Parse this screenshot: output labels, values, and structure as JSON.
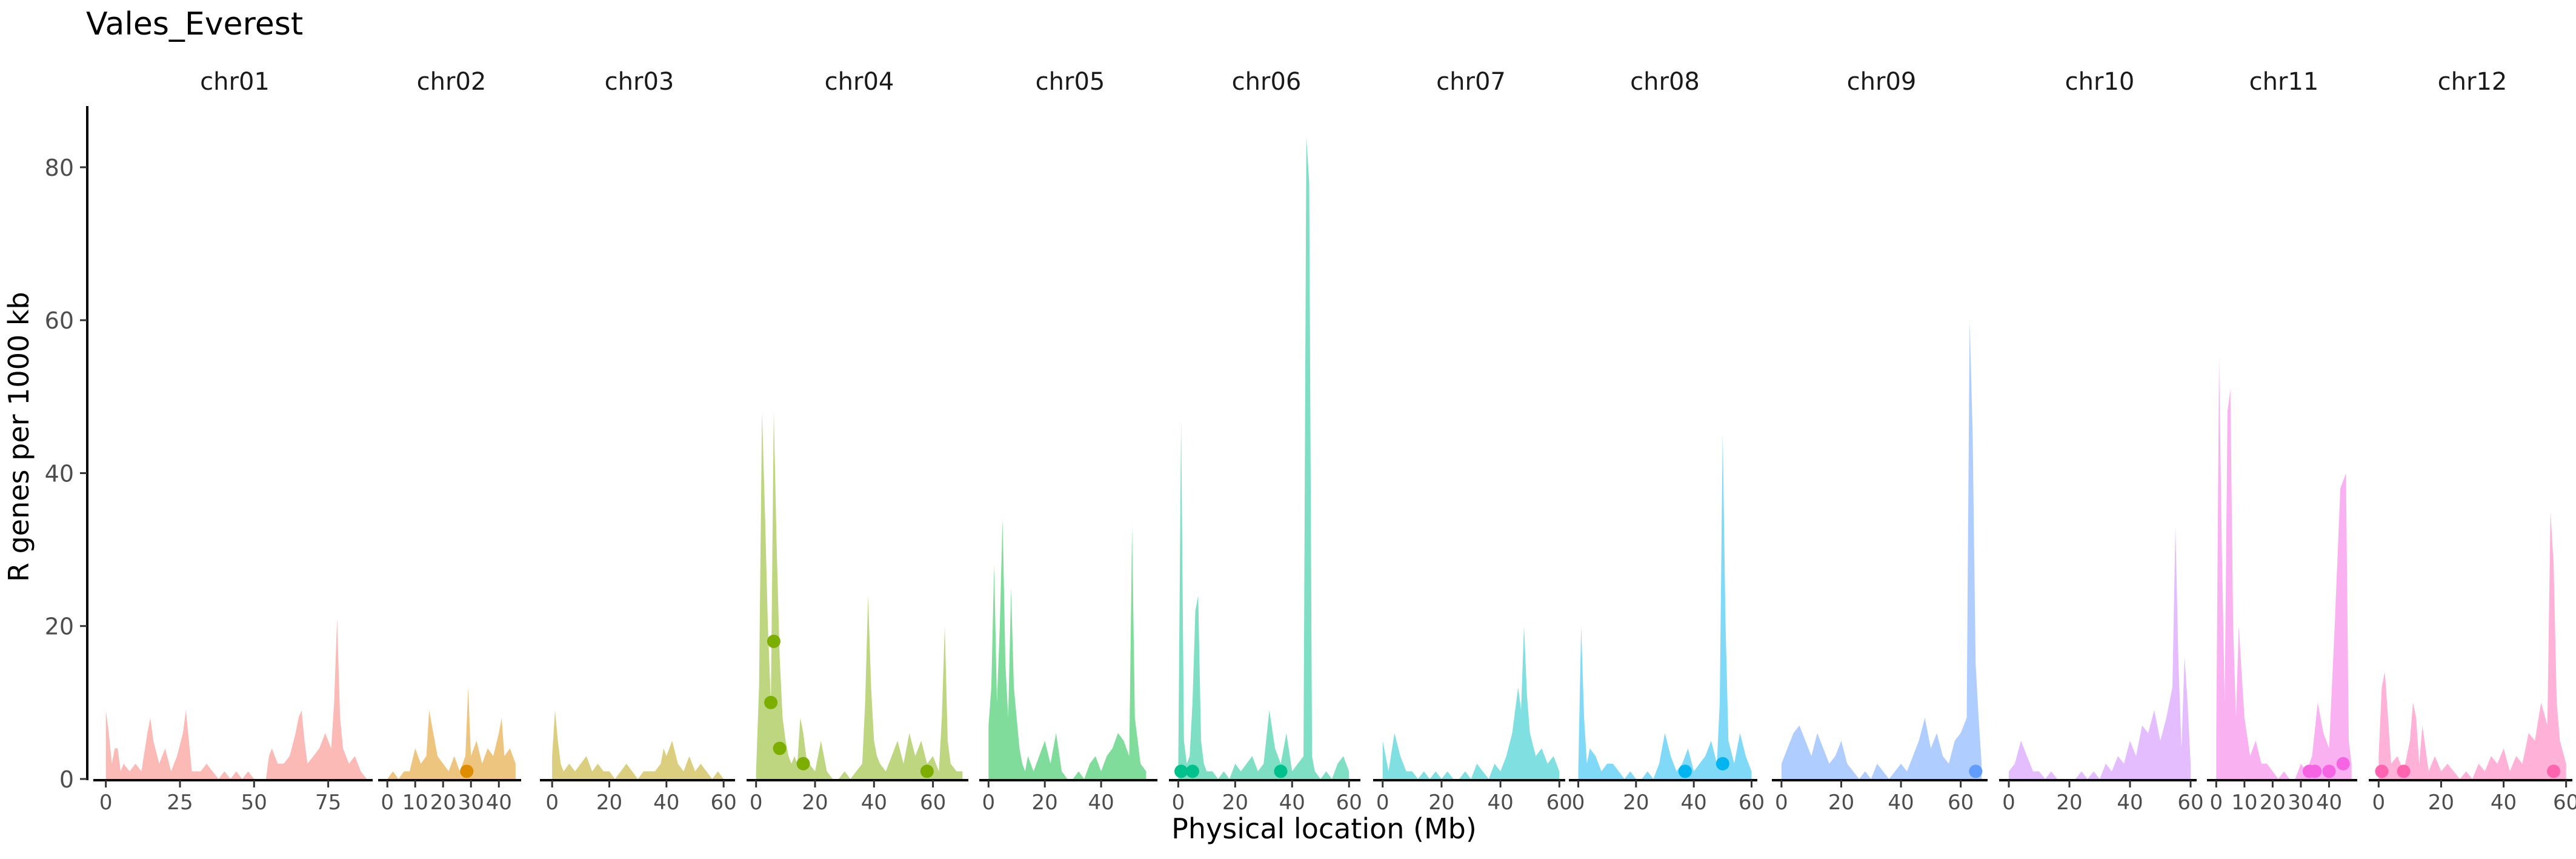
{
  "chart_data": {
    "type": "area",
    "title": "Vales_Everest",
    "xlabel": "Physical location (Mb)",
    "ylabel": "R genes per 1000 kb",
    "ylim": [
      0,
      88
    ],
    "y_ticks": [
      0,
      20,
      40,
      60,
      80
    ],
    "grid": false,
    "legend": "none",
    "panels": [
      {
        "name": "chr01",
        "color": "#F8766D",
        "xlim": [
          -3,
          90
        ],
        "x_ticks": [
          0,
          25,
          50,
          75
        ],
        "x": [
          0,
          1,
          2,
          3,
          4,
          5,
          6,
          8,
          10,
          12,
          14,
          15,
          16,
          18,
          20,
          22,
          24,
          26,
          27,
          28,
          29,
          30,
          32,
          34,
          36,
          38,
          40,
          42,
          44,
          46,
          48,
          50,
          52,
          54,
          55,
          56,
          57,
          58,
          60,
          62,
          64,
          65,
          66,
          67,
          68,
          70,
          72,
          74,
          76,
          77,
          78,
          79,
          80,
          81,
          82,
          84,
          86,
          88
        ],
        "values": [
          9,
          6,
          2,
          4,
          4,
          1,
          2,
          1,
          2,
          1,
          6,
          8,
          5,
          2,
          4,
          1,
          3,
          6,
          9,
          5,
          1,
          1,
          1,
          2,
          1,
          0,
          1,
          0,
          1,
          0,
          1,
          0,
          0,
          0,
          3,
          4,
          3,
          2,
          2,
          3,
          6,
          8,
          9,
          5,
          2,
          3,
          4,
          6,
          4,
          10,
          21,
          8,
          4,
          3,
          2,
          3,
          1,
          0
        ],
        "points": []
      },
      {
        "name": "chr02",
        "color": "#DE8C00",
        "xlim": [
          -2,
          48
        ],
        "x_ticks": [
          0,
          10,
          20,
          30,
          40
        ],
        "x": [
          0,
          2,
          4,
          6,
          8,
          10,
          12,
          14,
          15,
          16,
          17,
          18,
          20,
          22,
          24,
          26,
          28,
          29,
          30,
          32,
          34,
          36,
          38,
          40,
          41,
          42,
          44,
          46
        ],
        "values": [
          0,
          1,
          0,
          1,
          1,
          4,
          2,
          3,
          9,
          7,
          5,
          3,
          2,
          1,
          3,
          1,
          3,
          12,
          3,
          5,
          2,
          4,
          3,
          6,
          8,
          3,
          4,
          2
        ],
        "points": [
          [
            28.5,
            1
          ]
        ]
      },
      {
        "name": "chr03",
        "color": "#B79F00",
        "xlim": [
          -3,
          64
        ],
        "x_ticks": [
          0,
          20,
          40,
          60
        ],
        "x": [
          0,
          1,
          2,
          3,
          4,
          6,
          8,
          10,
          12,
          14,
          16,
          18,
          20,
          22,
          24,
          26,
          28,
          30,
          32,
          34,
          36,
          38,
          39,
          40,
          42,
          44,
          46,
          48,
          50,
          52,
          54,
          56,
          58,
          60,
          62
        ],
        "values": [
          3,
          9,
          5,
          2,
          1,
          2,
          1,
          2,
          3,
          1,
          2,
          1,
          1,
          0,
          1,
          2,
          1,
          0,
          1,
          1,
          1,
          2,
          4,
          3,
          5,
          2,
          1,
          3,
          1,
          2,
          1,
          0,
          1,
          0,
          0
        ],
        "points": []
      },
      {
        "name": "chr04",
        "color": "#7CAE00",
        "xlim": [
          -2,
          72
        ],
        "x_ticks": [
          0,
          20,
          40,
          60
        ],
        "x": [
          0,
          1,
          2,
          3,
          4,
          5,
          6,
          7,
          8,
          9,
          10,
          11,
          12,
          13,
          14,
          15,
          16,
          17,
          18,
          20,
          22,
          24,
          26,
          28,
          30,
          32,
          34,
          36,
          37,
          38,
          39,
          40,
          41,
          42,
          44,
          46,
          48,
          50,
          52,
          54,
          56,
          58,
          60,
          62,
          63,
          64,
          65,
          66,
          68,
          70
        ],
        "values": [
          1,
          12,
          48,
          35,
          20,
          10,
          48,
          30,
          16,
          8,
          5,
          3,
          2,
          3,
          2,
          8,
          6,
          3,
          2,
          1,
          5,
          1,
          0,
          0,
          1,
          0,
          1,
          2,
          10,
          24,
          12,
          5,
          3,
          2,
          1,
          3,
          5,
          2,
          6,
          3,
          5,
          2,
          3,
          1,
          8,
          20,
          5,
          2,
          1,
          1
        ],
        "points": [
          [
            5,
            10
          ],
          [
            6,
            18
          ],
          [
            8,
            4
          ],
          [
            16,
            2
          ],
          [
            58,
            1
          ]
        ]
      },
      {
        "name": "chr05",
        "color": "#00BA38",
        "xlim": [
          -2,
          60
        ],
        "x_ticks": [
          0,
          20,
          40
        ],
        "x": [
          0,
          1,
          2,
          3,
          4,
          5,
          6,
          7,
          8,
          9,
          10,
          11,
          12,
          13,
          14,
          15,
          16,
          17,
          18,
          20,
          22,
          24,
          26,
          28,
          30,
          32,
          34,
          36,
          38,
          40,
          42,
          44,
          46,
          48,
          50,
          51,
          52,
          54,
          56
        ],
        "values": [
          7,
          12,
          28,
          10,
          20,
          34,
          15,
          8,
          25,
          12,
          8,
          4,
          2,
          1,
          3,
          2,
          1,
          2,
          3,
          5,
          2,
          6,
          1,
          0,
          0,
          1,
          0,
          2,
          3,
          1,
          3,
          4,
          6,
          5,
          3,
          33,
          8,
          2,
          1
        ],
        "points": []
      },
      {
        "name": "chr06",
        "color": "#00C08B",
        "xlim": [
          -2,
          64
        ],
        "x_ticks": [
          0,
          20,
          40,
          60
        ],
        "x": [
          0,
          1,
          2,
          3,
          4,
          5,
          6,
          7,
          8,
          9,
          10,
          12,
          14,
          16,
          18,
          20,
          22,
          24,
          26,
          28,
          30,
          32,
          34,
          36,
          38,
          40,
          42,
          44,
          45,
          46,
          47,
          48,
          50,
          52,
          54,
          56,
          58,
          60
        ],
        "values": [
          2,
          47,
          5,
          2,
          3,
          10,
          22,
          24,
          5,
          2,
          1,
          1,
          0,
          1,
          0,
          2,
          1,
          2,
          3,
          1,
          2,
          9,
          4,
          2,
          6,
          1,
          2,
          3,
          84,
          78,
          3,
          1,
          0,
          1,
          0,
          2,
          3,
          1
        ],
        "points": [
          [
            1,
            1
          ],
          [
            5,
            1
          ],
          [
            36,
            1
          ]
        ]
      },
      {
        "name": "chr07",
        "color": "#00BFC4",
        "xlim": [
          -2,
          62
        ],
        "x_ticks": [
          0,
          20,
          40,
          60
        ],
        "x": [
          0,
          1,
          2,
          4,
          6,
          8,
          10,
          12,
          14,
          16,
          18,
          20,
          22,
          24,
          26,
          28,
          30,
          32,
          34,
          36,
          38,
          40,
          42,
          44,
          46,
          47,
          48,
          49,
          50,
          52,
          54,
          56,
          58,
          60
        ],
        "values": [
          5,
          3,
          1,
          6,
          3,
          1,
          1,
          0,
          1,
          0,
          1,
          0,
          1,
          0,
          0,
          1,
          0,
          2,
          1,
          0,
          2,
          1,
          3,
          6,
          12,
          9,
          20,
          11,
          6,
          3,
          4,
          2,
          3,
          1
        ],
        "points": []
      },
      {
        "name": "chr08",
        "color": "#00B4EF",
        "xlim": [
          -2,
          62
        ],
        "x_ticks": [
          0,
          20,
          40,
          60
        ],
        "x": [
          0,
          1,
          2,
          3,
          4,
          6,
          8,
          10,
          12,
          14,
          16,
          18,
          20,
          22,
          24,
          26,
          28,
          30,
          32,
          34,
          36,
          38,
          40,
          42,
          44,
          46,
          48,
          49,
          50,
          51,
          52,
          54,
          56,
          58,
          60
        ],
        "values": [
          1,
          20,
          8,
          2,
          4,
          3,
          1,
          2,
          2,
          1,
          0,
          1,
          0,
          0,
          1,
          0,
          2,
          6,
          3,
          1,
          2,
          4,
          1,
          2,
          3,
          5,
          2,
          10,
          45,
          20,
          5,
          2,
          6,
          3,
          1
        ],
        "points": [
          [
            37,
            1
          ],
          [
            50,
            2
          ]
        ]
      },
      {
        "name": "chr09",
        "color": "#619CFF",
        "xlim": [
          -2,
          69
        ],
        "x_ticks": [
          0,
          20,
          40,
          60
        ],
        "x": [
          0,
          2,
          4,
          6,
          8,
          10,
          12,
          14,
          16,
          18,
          20,
          22,
          24,
          26,
          28,
          30,
          32,
          34,
          36,
          38,
          40,
          42,
          44,
          46,
          48,
          50,
          52,
          54,
          56,
          58,
          60,
          62,
          63,
          64,
          65,
          66,
          67
        ],
        "values": [
          2,
          4,
          6,
          7,
          5,
          3,
          6,
          4,
          2,
          3,
          5,
          2,
          1,
          0,
          1,
          0,
          2,
          1,
          0,
          1,
          2,
          1,
          3,
          5,
          8,
          4,
          6,
          3,
          2,
          5,
          6,
          8,
          60,
          45,
          15,
          8,
          2
        ],
        "points": [
          [
            65,
            1
          ]
        ]
      },
      {
        "name": "chr10",
        "color": "#C77CFF",
        "xlim": [
          -2,
          62
        ],
        "x_ticks": [
          0,
          20,
          40,
          60
        ],
        "x": [
          0,
          2,
          4,
          6,
          8,
          10,
          12,
          14,
          16,
          18,
          20,
          22,
          24,
          26,
          28,
          30,
          32,
          34,
          36,
          38,
          40,
          42,
          44,
          46,
          48,
          50,
          52,
          54,
          55,
          56,
          57,
          58,
          59,
          60
        ],
        "values": [
          1,
          2,
          5,
          3,
          1,
          1,
          0,
          1,
          0,
          0,
          0,
          0,
          1,
          0,
          1,
          0,
          2,
          1,
          3,
          2,
          5,
          3,
          7,
          6,
          9,
          5,
          8,
          12,
          33,
          15,
          4,
          16,
          10,
          2
        ],
        "points": []
      },
      {
        "name": "chr11",
        "color": "#F564E3",
        "xlim": [
          -2,
          50
        ],
        "x_ticks": [
          0,
          10,
          20,
          30,
          40
        ],
        "x": [
          0,
          1,
          2,
          3,
          4,
          5,
          6,
          7,
          8,
          10,
          12,
          14,
          16,
          18,
          20,
          22,
          24,
          26,
          28,
          30,
          32,
          34,
          36,
          38,
          40,
          42,
          44,
          46,
          47,
          48
        ],
        "values": [
          5,
          55,
          30,
          10,
          48,
          51,
          20,
          8,
          20,
          8,
          3,
          5,
          2,
          2,
          1,
          0,
          1,
          0,
          0,
          2,
          1,
          3,
          10,
          6,
          4,
          20,
          38,
          40,
          5,
          2
        ],
        "points": [
          [
            33,
            1
          ],
          [
            35,
            1
          ],
          [
            40,
            1
          ],
          [
            45,
            2
          ]
        ]
      },
      {
        "name": "chr12",
        "color": "#FF64B0",
        "xlim": [
          -2,
          62
        ],
        "x_ticks": [
          0,
          20,
          40,
          60
        ],
        "x": [
          0,
          1,
          2,
          3,
          4,
          6,
          8,
          10,
          11,
          12,
          13,
          14,
          16,
          18,
          20,
          22,
          24,
          26,
          28,
          30,
          32,
          34,
          36,
          38,
          40,
          42,
          44,
          46,
          48,
          50,
          52,
          54,
          55,
          56,
          57,
          58,
          60
        ],
        "values": [
          3,
          12,
          14,
          8,
          2,
          3,
          1,
          5,
          10,
          8,
          2,
          7,
          1,
          3,
          1,
          2,
          1,
          0,
          1,
          0,
          2,
          1,
          3,
          2,
          4,
          1,
          3,
          2,
          6,
          5,
          10,
          7,
          35,
          28,
          10,
          5,
          2
        ],
        "points": [
          [
            1,
            1
          ],
          [
            8,
            1
          ],
          [
            56,
            1
          ]
        ]
      }
    ]
  }
}
